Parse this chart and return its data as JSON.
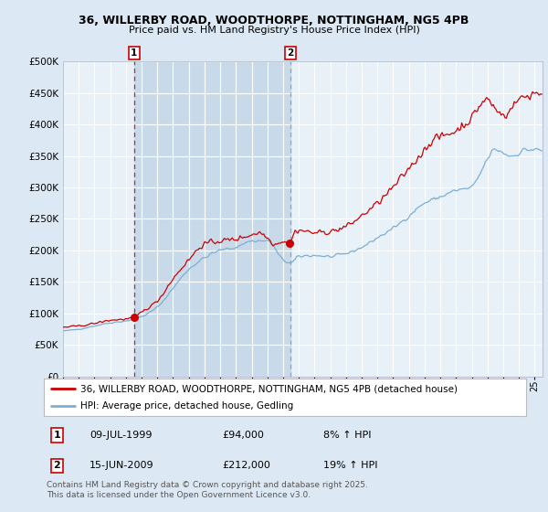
{
  "title_line1": "36, WILLERBY ROAD, WOODTHORPE, NOTTINGHAM, NG5 4PB",
  "title_line2": "Price paid vs. HM Land Registry's House Price Index (HPI)",
  "legend_property": "36, WILLERBY ROAD, WOODTHORPE, NOTTINGHAM, NG5 4PB (detached house)",
  "legend_hpi": "HPI: Average price, detached house, Gedling",
  "transaction1_date": "09-JUL-1999",
  "transaction1_price": 94000,
  "transaction1_pct": "8% ↑ HPI",
  "transaction2_date": "15-JUN-2009",
  "transaction2_price": 212000,
  "transaction2_pct": "19% ↑ HPI",
  "footnote": "Contains HM Land Registry data © Crown copyright and database right 2025.\nThis data is licensed under the Open Government Licence v3.0.",
  "bg_color": "#dce9f5",
  "plot_bg_color": "#e8f0f8",
  "grid_color": "#ffffff",
  "property_line_color": "#cc0000",
  "hpi_line_color": "#7bafd4",
  "vline1_color": "#cc0000",
  "vline2_color": "#8899aa",
  "marker_color": "#cc0000",
  "shade_color": "#c8daea",
  "ylim": [
    0,
    500000
  ],
  "ytick_step": 50000,
  "start_year": 1995,
  "end_year": 2025,
  "vline1_year": 1999.52,
  "vline2_year": 2009.45
}
